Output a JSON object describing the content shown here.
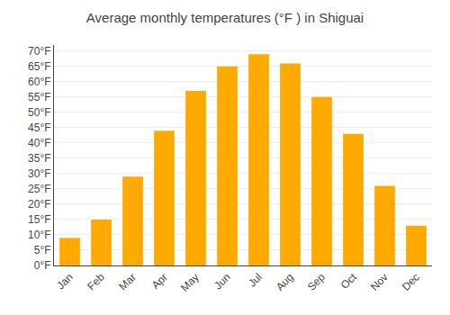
{
  "chart_data": {
    "type": "bar",
    "title": "Average monthly temperatures (°F ) in Shiguai",
    "categories": [
      "Jan",
      "Feb",
      "Mar",
      "Apr",
      "May",
      "Jun",
      "Jul",
      "Aug",
      "Sep",
      "Oct",
      "Nov",
      "Dec"
    ],
    "values": [
      9,
      15,
      29,
      44,
      57,
      65,
      69,
      66,
      55,
      43,
      26,
      13
    ],
    "color": "#FFAA00",
    "ylim": [
      0,
      72
    ],
    "yticks": [
      {
        "value": 0,
        "label": "0°F"
      },
      {
        "value": 5,
        "label": "5°F"
      },
      {
        "value": 10,
        "label": "10°F"
      },
      {
        "value": 15,
        "label": "15°F"
      },
      {
        "value": 20,
        "label": "20°F"
      },
      {
        "value": 25,
        "label": "25°F"
      },
      {
        "value": 30,
        "label": "30°F"
      },
      {
        "value": 35,
        "label": "35°F"
      },
      {
        "value": 40,
        "label": "40°F"
      },
      {
        "value": 45,
        "label": "45°F"
      },
      {
        "value": 50,
        "label": "50°F"
      },
      {
        "value": 55,
        "label": "55°F"
      },
      {
        "value": 60,
        "label": "60°F"
      },
      {
        "value": 65,
        "label": "65°F"
      },
      {
        "value": 70,
        "label": "70°F"
      }
    ],
    "grid": true
  }
}
